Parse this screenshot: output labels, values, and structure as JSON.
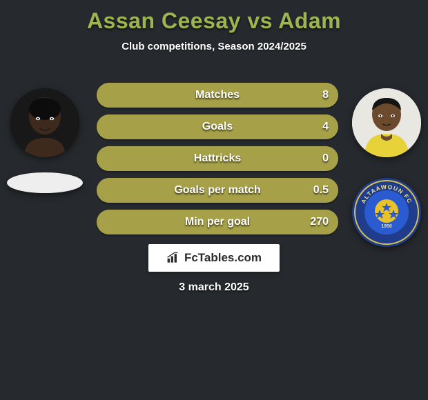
{
  "background_color": "#262a2e",
  "title": {
    "text": "Assan Ceesay vs Adam",
    "color": "#9db551",
    "fontsize": 32
  },
  "subtitle": {
    "text": "Club competitions, Season 2024/2025",
    "color": "#ffffff",
    "fontsize": 15
  },
  "player_left": {
    "name": "Assan Ceesay",
    "avatar_bg": "#181818",
    "skin": "#3d2a1c",
    "club_placeholder_bg": "#eeeeee"
  },
  "player_right": {
    "name": "Adam",
    "avatar_bg": "#e9e7e2",
    "skin": "#6b4a2e",
    "shirt": "#e8d23a",
    "crest_outer": "#1f3d8a",
    "crest_ball": "#e8c22a",
    "crest_stars": "#2a5bd0",
    "crest_year": "1956",
    "crest_text": "ALTAAWOUN FC"
  },
  "bars": {
    "track_color": "#a6a048",
    "fill_color": "#a6a048",
    "label_color": "#ffffff",
    "value_color": "#ffffff",
    "fontsize": 16,
    "rows": [
      {
        "label": "Matches",
        "left": "",
        "right": "8",
        "left_pct": 0,
        "right_pct": 100
      },
      {
        "label": "Goals",
        "left": "",
        "right": "4",
        "left_pct": 0,
        "right_pct": 100
      },
      {
        "label": "Hattricks",
        "left": "",
        "right": "0",
        "left_pct": 0,
        "right_pct": 100
      },
      {
        "label": "Goals per match",
        "left": "",
        "right": "0.5",
        "left_pct": 0,
        "right_pct": 100
      },
      {
        "label": "Min per goal",
        "left": "",
        "right": "270",
        "left_pct": 0,
        "right_pct": 100
      }
    ]
  },
  "branding": {
    "text": "FcTables.com",
    "icon_color": "#2b2b2b",
    "bg": "#ffffff"
  },
  "date": {
    "text": "3 march 2025",
    "color": "#ffffff"
  }
}
